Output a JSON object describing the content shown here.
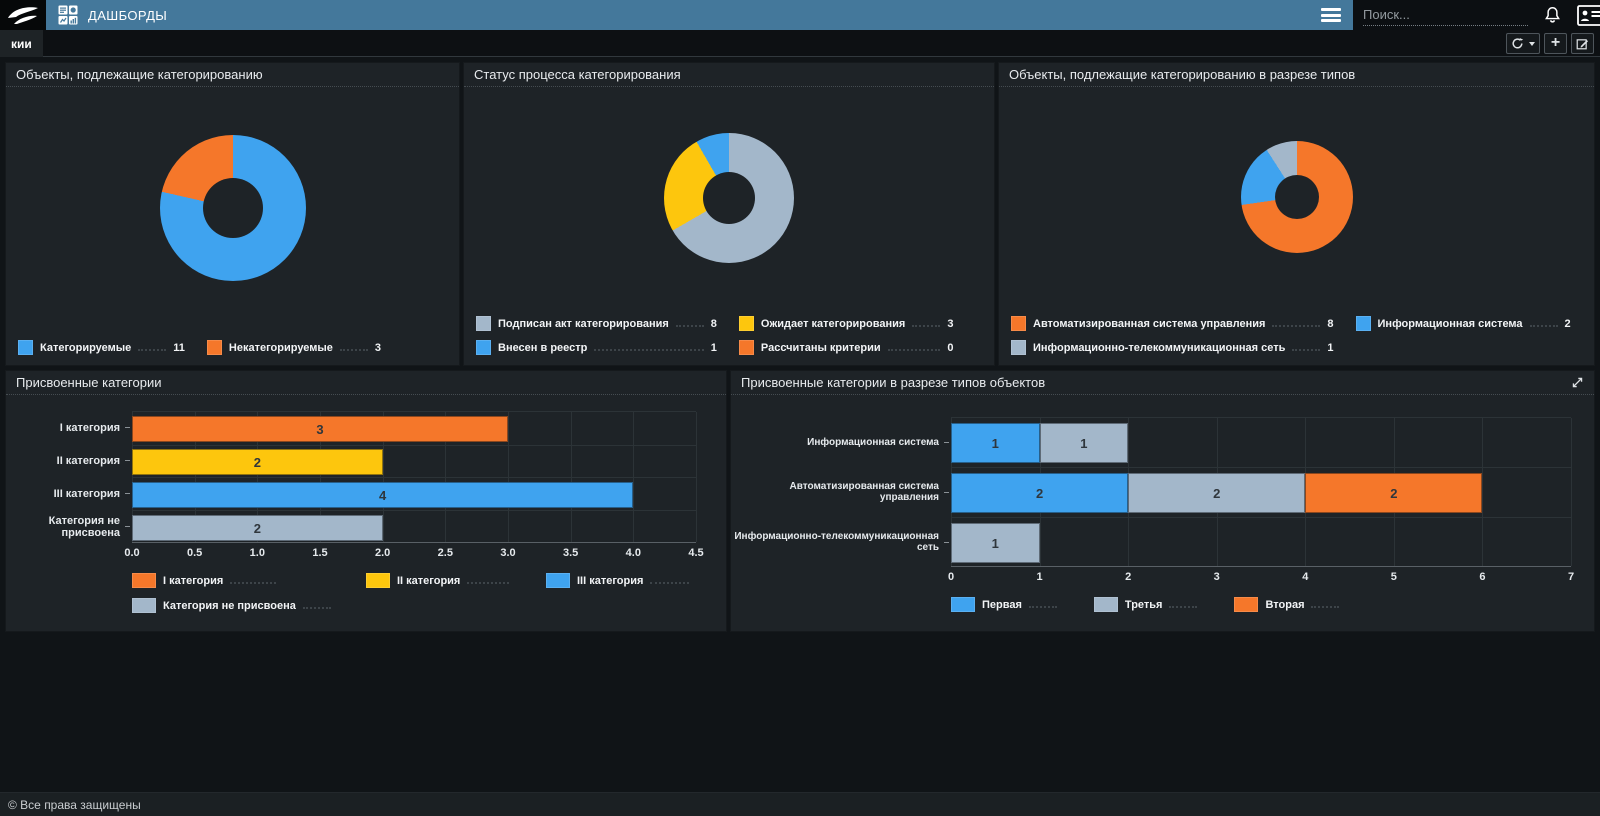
{
  "colors": {
    "blue": "#3fa3ef",
    "orange": "#f5772a",
    "yellow": "#fdc60d",
    "gray": "#a3b7ca",
    "header_blue": "#44789b",
    "panel_bg": "#1e2327",
    "page_bg": "#101417"
  },
  "header": {
    "title": "ДАШБОРДЫ",
    "search_placeholder": "Поиск..."
  },
  "icons": {
    "add_glyph": "+"
  },
  "tabs": [
    {
      "label": "кии",
      "active": true
    }
  ],
  "footer": {
    "copyright": "© Все права защищены"
  },
  "chart_data": [
    {
      "type": "pie",
      "title": "Объекты, подлежащие категорированию",
      "labels": [
        "Категорируемые",
        "Некатегорируемые"
      ],
      "values": [
        11,
        3
      ],
      "colors": [
        "blue",
        "orange"
      ],
      "legend_position": "bottom"
    },
    {
      "type": "pie",
      "title": "Статус процесса категорирования",
      "labels": [
        "Подписан акт категорирования",
        "Ожидает категорирования",
        "Внесен в реестр",
        "Рассчитаны критерии"
      ],
      "values": [
        8,
        3,
        1,
        0
      ],
      "colors": [
        "gray",
        "yellow",
        "blue",
        "orange"
      ],
      "legend_position": "bottom"
    },
    {
      "type": "pie",
      "title": "Объекты, подлежащие категорированию в разрезе типов",
      "labels": [
        "Автоматизированная система управления",
        "Информационная система",
        "Информационно-телекоммуникационная сеть"
      ],
      "values": [
        8,
        2,
        1
      ],
      "colors": [
        "orange",
        "blue",
        "gray"
      ],
      "legend_position": "bottom"
    },
    {
      "type": "bar",
      "title": "Присвоенные категории",
      "categories": [
        "I категория",
        "II категория",
        "III категория",
        "Категория не присвоена"
      ],
      "values": [
        3,
        2,
        4,
        2
      ],
      "colors": [
        "orange",
        "yellow",
        "blue",
        "gray"
      ],
      "xmax": 4.5,
      "ticks": [
        "0.0",
        "0.5",
        "1.0",
        "1.5",
        "2.0",
        "2.5",
        "3.0",
        "3.5",
        "4.0",
        "4.5"
      ],
      "legend": [
        "I категория",
        "II категория",
        "III категория",
        "Категория не присвоена"
      ],
      "grid": true,
      "legend_position": "bottom"
    },
    {
      "type": "bar",
      "subtype": "stacked",
      "title": "Присвоенные категории в разрезе типов объектов",
      "categories": [
        "Информационная система",
        "Автоматизированная система управления",
        "Информационно-телекоммуникационная сеть"
      ],
      "series": [
        {
          "name": "Первая",
          "color": "blue",
          "values": [
            1,
            2,
            0
          ]
        },
        {
          "name": "Третья",
          "color": "gray",
          "values": [
            1,
            2,
            1
          ]
        },
        {
          "name": "Вторая",
          "color": "orange",
          "values": [
            0,
            2,
            0
          ]
        }
      ],
      "xmax": 7,
      "ticks": [
        "0",
        "1",
        "2",
        "3",
        "4",
        "5",
        "6",
        "7"
      ],
      "grid": true,
      "legend_position": "bottom"
    }
  ]
}
